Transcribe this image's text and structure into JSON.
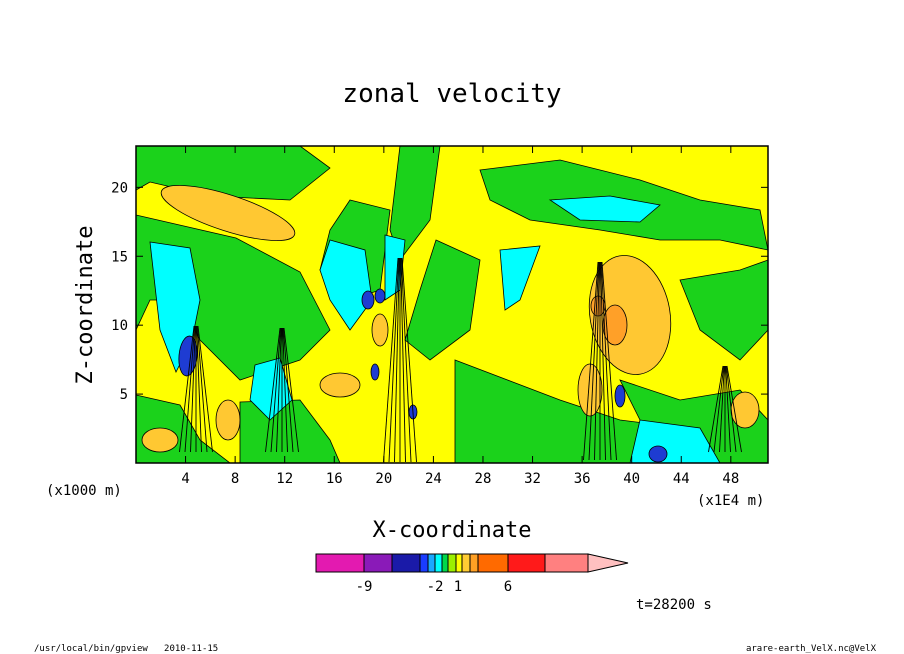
{
  "chart_data": {
    "type": "heatmap",
    "title": "zonal velocity",
    "xlabel": "X-coordinate",
    "ylabel": "Z-coordinate",
    "x_unit_label": "(x1000 m)",
    "x_multiplier_label": "(x1E4 m)",
    "x_ticks": [
      4,
      8,
      12,
      16,
      20,
      24,
      28,
      32,
      36,
      40,
      44,
      48
    ],
    "y_ticks": [
      5,
      10,
      15,
      20
    ],
    "xlim": [
      0,
      51
    ],
    "ylim": [
      0,
      23
    ],
    "grid": false,
    "colorbar": {
      "tick_labels": [
        "-9",
        "-2",
        "1",
        "6"
      ],
      "colors": [
        "#e31ab0",
        "#8a1ab8",
        "#1a1aa8",
        "#1a3cff",
        "#1aa8ff",
        "#00ffff",
        "#00d84a",
        "#9bf000",
        "#ffff00",
        "#ffcc33",
        "#ffa024",
        "#ff6a00",
        "#ff1a1a",
        "#ff8080",
        "#ffc0c0"
      ]
    },
    "field_colors": {
      "background": "#ffff00",
      "weak_negative": "#1bd21b",
      "moderate_negative": "#00ffff",
      "strong_negative": "#1e3cd2",
      "weak_positive": "#ffc832",
      "moderate_positive": "#ffa028"
    }
  },
  "annotation": {
    "time": "t=28200 s"
  },
  "footer": {
    "left": "/usr/local/bin/gpview   2010-11-15",
    "right": "arare-earth_VelX.nc@VelX"
  }
}
